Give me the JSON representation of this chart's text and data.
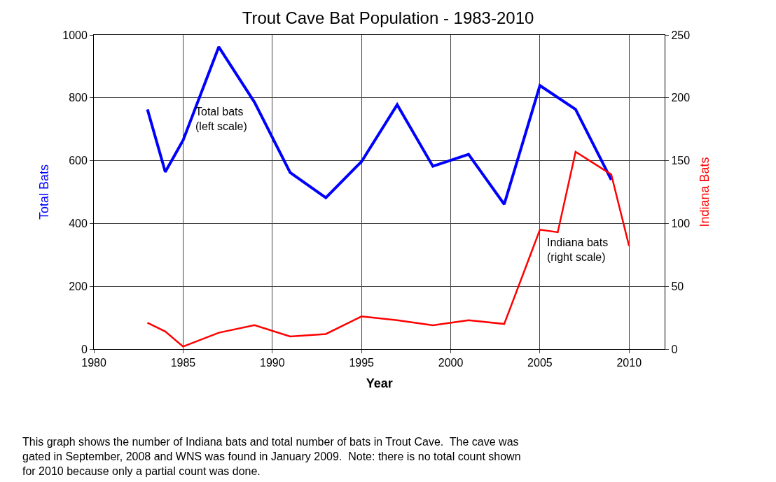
{
  "chart_data": {
    "type": "line",
    "title": "Trout Cave Bat Population - 1983-2010",
    "xlabel": "Year",
    "ylabel": "Total Bats",
    "y2label": "Indiana Bats",
    "series": [
      {
        "color": "#0000ff",
        "x": [
          1983,
          1984,
          1985,
          1987,
          1989,
          1991,
          1993,
          1995,
          1997,
          1999,
          2001,
          2003,
          2005,
          2007,
          2009
        ],
        "values": [
          763,
          564,
          665,
          962,
          786,
          562,
          482,
          597,
          778,
          582,
          620,
          461,
          839,
          763,
          539
        ]
      },
      {
        "color": "#ff0000",
        "axis": "y2",
        "x": [
          1983,
          1984,
          1985,
          1987,
          1989,
          1991,
          1993,
          1995,
          1997,
          1999,
          2001,
          2003,
          2005,
          2006,
          2007,
          2009,
          2010
        ],
        "values": [
          21,
          14,
          2,
          13,
          19,
          10,
          12,
          26,
          23,
          19,
          23,
          20,
          95,
          93,
          157,
          139,
          82
        ]
      }
    ],
    "xlim": [
      1980,
      2012
    ],
    "xticks": [
      1980,
      1985,
      1990,
      1995,
      2000,
      2005,
      2010
    ],
    "ylim": [
      0,
      1000
    ],
    "yticks": [
      0,
      200,
      400,
      600,
      800,
      1000
    ],
    "y2lim": [
      0,
      250
    ],
    "y2ticks": [
      0,
      50,
      100,
      150,
      200,
      250
    ],
    "grid": true,
    "annotations": [
      "Total bats\n(left scale)",
      "Indiana bats\n(right scale)",
      "This graph shows the number of Indiana bats and total number of bats in Trout Cave.  The cave was gated in September, 2008 and WNS was found in January 2009.  Note: there is no total count shown for 2010 because only a partial count was done."
    ]
  }
}
